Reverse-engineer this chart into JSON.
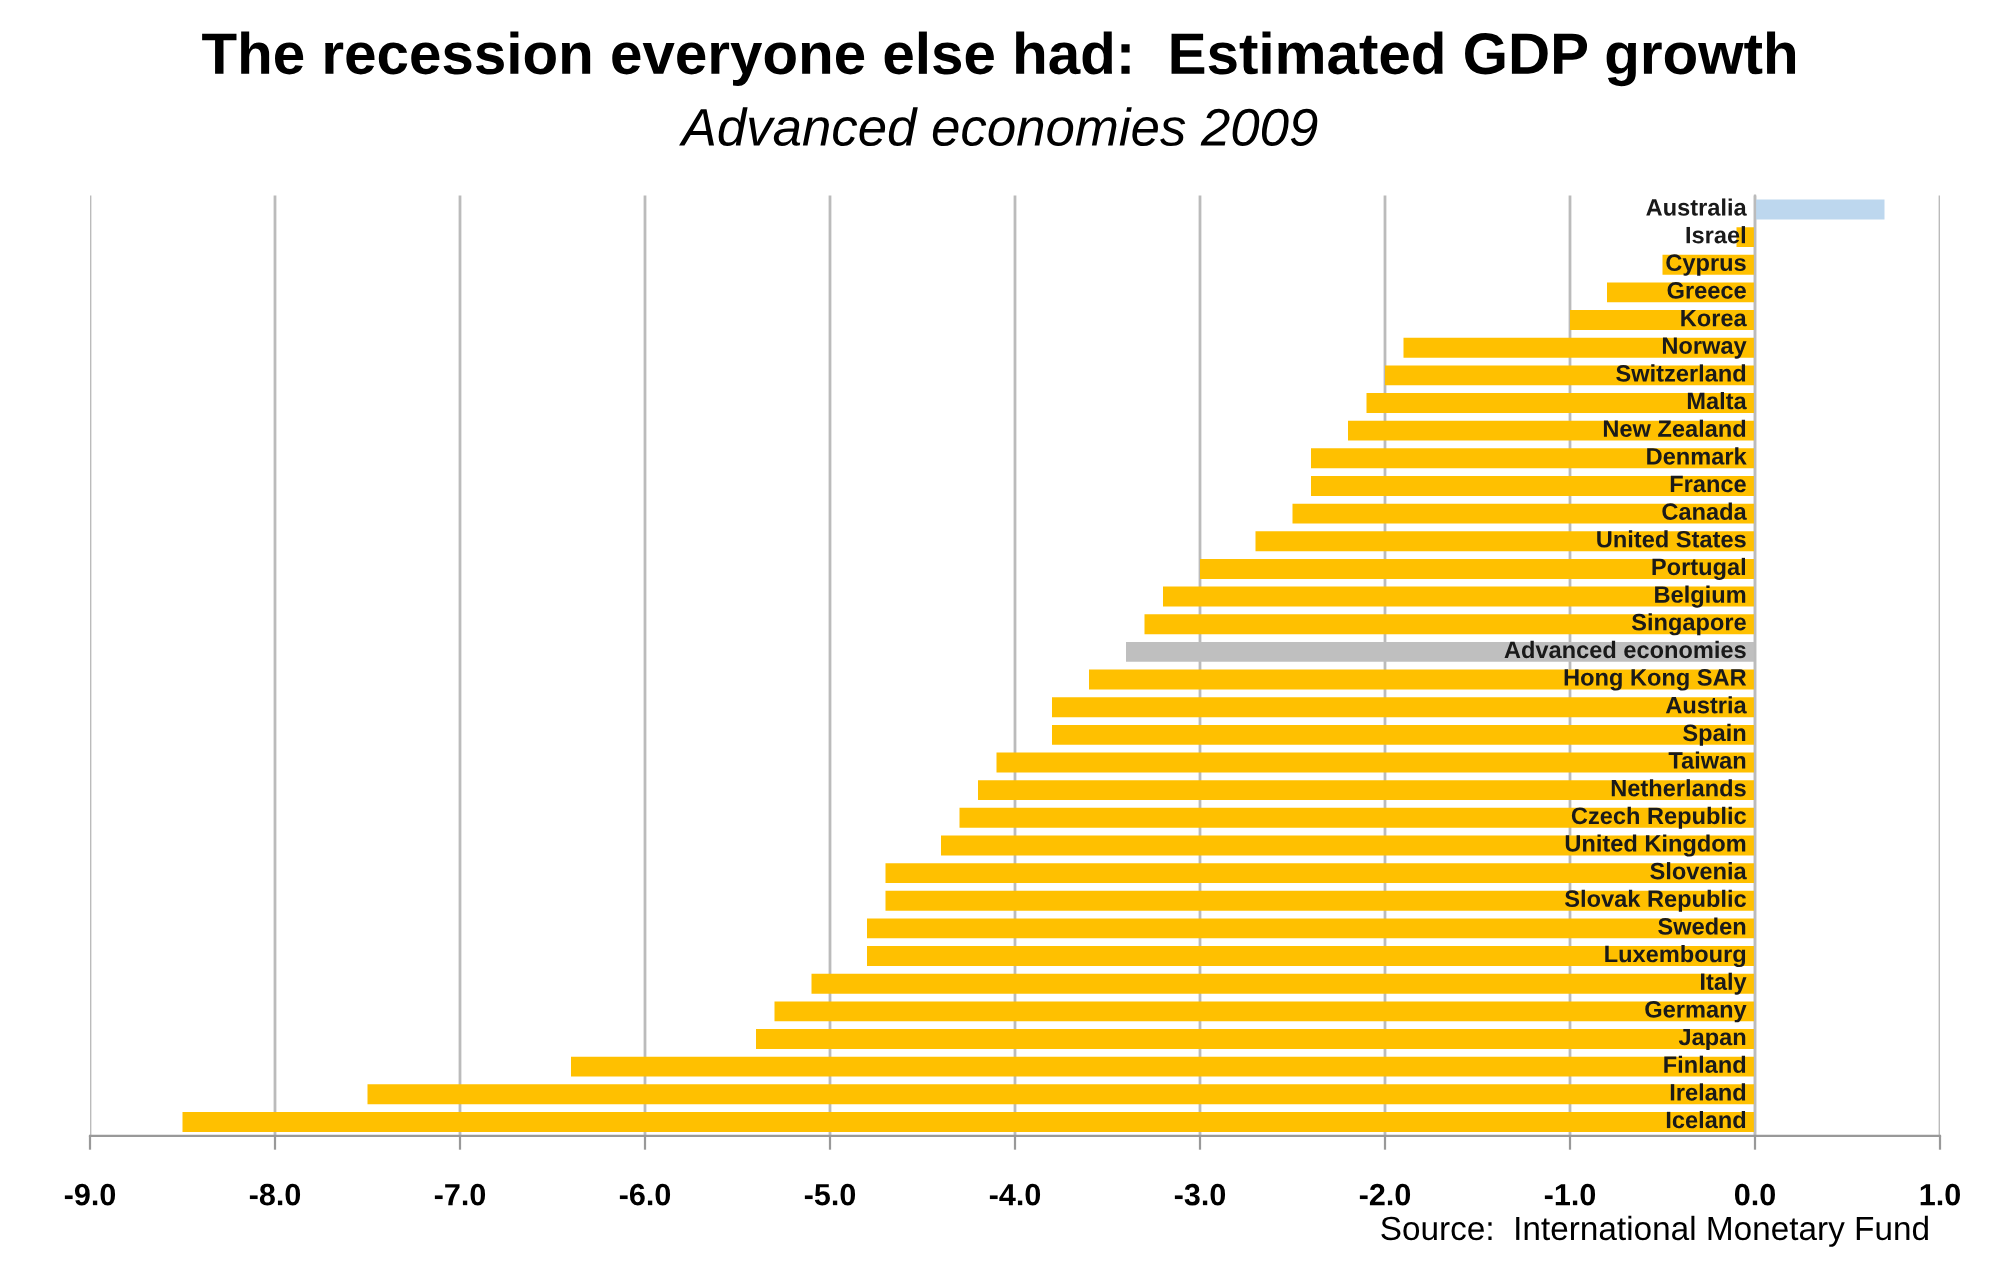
{
  "chart_data": {
    "type": "bar",
    "orientation": "horizontal",
    "title": "The recession everyone else had:  Estimated GDP growth",
    "subtitle": "Advanced economies 2009",
    "categories": [
      "Australia",
      "Israel",
      "Cyprus",
      "Greece",
      "Korea",
      "Norway",
      "Switzerland",
      "Malta",
      "New Zealand",
      "Denmark",
      "France",
      "Canada",
      "United States",
      "Portugal",
      "Belgium",
      "Singapore",
      "Advanced economies",
      "Hong Kong SAR",
      "Austria",
      "Spain",
      "Taiwan",
      "Netherlands",
      "Czech Republic",
      "United Kingdom",
      "Slovenia",
      "Slovak Republic",
      "Sweden",
      "Luxembourg",
      "Italy",
      "Germany",
      "Japan",
      "Finland",
      "Ireland",
      "Iceland"
    ],
    "values": [
      0.7,
      -0.1,
      -0.5,
      -0.8,
      -1.0,
      -1.9,
      -2.0,
      -2.1,
      -2.2,
      -2.4,
      -2.4,
      -2.5,
      -2.7,
      -3.0,
      -3.2,
      -3.3,
      -3.4,
      -3.6,
      -3.8,
      -3.8,
      -4.1,
      -4.2,
      -4.3,
      -4.4,
      -4.7,
      -4.7,
      -4.8,
      -4.8,
      -5.1,
      -5.3,
      -5.4,
      -6.4,
      -7.5,
      -8.5
    ],
    "colors": [
      "#bdd7ee",
      "#ffc000",
      "#ffc000",
      "#ffc000",
      "#ffc000",
      "#ffc000",
      "#ffc000",
      "#ffc000",
      "#ffc000",
      "#ffc000",
      "#ffc000",
      "#ffc000",
      "#ffc000",
      "#ffc000",
      "#ffc000",
      "#ffc000",
      "#bfbfbf",
      "#ffc000",
      "#ffc000",
      "#ffc000",
      "#ffc000",
      "#ffc000",
      "#ffc000",
      "#ffc000",
      "#ffc000",
      "#ffc000",
      "#ffc000",
      "#ffc000",
      "#ffc000",
      "#ffc000",
      "#ffc000",
      "#ffc000",
      "#ffc000",
      "#ffc000"
    ],
    "xlim": [
      -9.0,
      1.0
    ],
    "xticks": [
      {
        "value": -9,
        "label": "-9.0"
      },
      {
        "value": -8,
        "label": "-8.0"
      },
      {
        "value": -7,
        "label": "-7.0"
      },
      {
        "value": -6,
        "label": "-6.0"
      },
      {
        "value": -5,
        "label": "-5.0"
      },
      {
        "value": -4,
        "label": "-4.0"
      },
      {
        "value": -3,
        "label": "-3.0"
      },
      {
        "value": -2,
        "label": "-2.0"
      },
      {
        "value": -1,
        "label": "-1.0"
      },
      {
        "value": 0,
        "label": "0.0"
      },
      {
        "value": 1,
        "label": "1.0"
      }
    ],
    "grid": "x",
    "annotations": [
      "Source:  International Monetary Fund"
    ]
  }
}
